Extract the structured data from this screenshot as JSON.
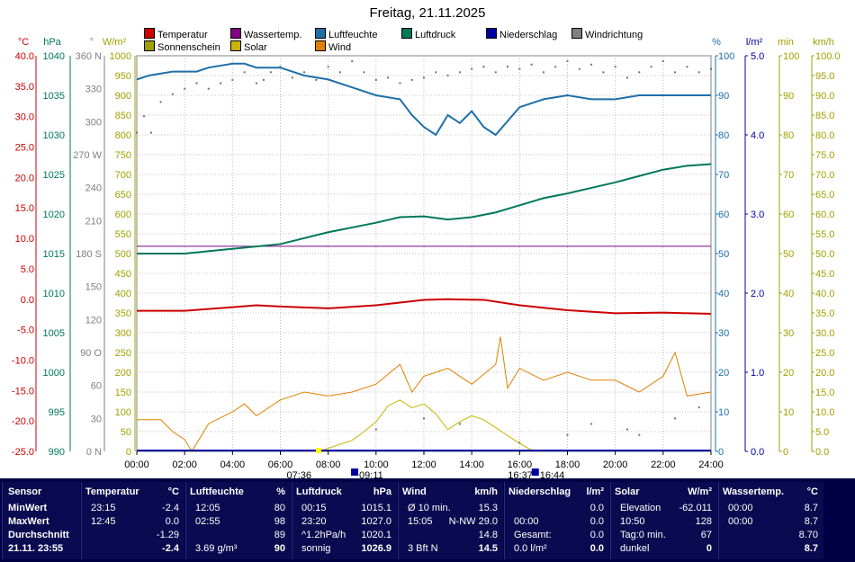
{
  "title": "Freitag, 21.11.2025",
  "legend": [
    {
      "label": "Temperatur",
      "color": "#cc0000"
    },
    {
      "label": "Wassertemp.",
      "color": "#800080"
    },
    {
      "label": "Luftfeuchte",
      "color": "#1e6fa8"
    },
    {
      "label": "Luftdruck",
      "color": "#00785a"
    },
    {
      "label": "Niederschlag",
      "color": "#0000a0"
    },
    {
      "label": "Windrichtung",
      "color": "#808080"
    },
    {
      "label": "Sonnenschein",
      "color": "#a0a000"
    },
    {
      "label": "Solar",
      "color": "#c8b400"
    },
    {
      "label": "Wind",
      "color": "#e08000"
    }
  ],
  "axis_units": {
    "temp": "°C",
    "pressure": "hPa",
    "direction": "°",
    "solar": "W/m²",
    "humidity": "%",
    "rain": "l/m²",
    "sunmin": "min",
    "wind": "km/h"
  },
  "sun_events": {
    "rise": "07:36",
    "set": "16:37",
    "sun_start": "09:11",
    "sun_end": "16:44"
  },
  "chart_data": {
    "type": "line",
    "x": [
      "00:00",
      "02:00",
      "04:00",
      "06:00",
      "08:00",
      "10:00",
      "12:00",
      "14:00",
      "16:00",
      "18:00",
      "20:00",
      "22:00",
      "24:00"
    ],
    "axes": {
      "temp": {
        "label": "°C",
        "range": [
          -25,
          40
        ],
        "ticks": [
          "40.0",
          "35.0",
          "30.0",
          "25.0",
          "20.0",
          "15.0",
          "10.0",
          "5.0",
          "0.0",
          "-5.0",
          "-10.0",
          "-15.0",
          "-20.0",
          "-25.0"
        ],
        "color": "#cc0000"
      },
      "pressure": {
        "label": "hPa",
        "range": [
          990,
          1040
        ],
        "ticks": [
          "1040",
          "1035",
          "1030",
          "1025",
          "1020",
          "1015",
          "1010",
          "1005",
          "1000",
          "995",
          "990"
        ],
        "color": "#00785a"
      },
      "direction": {
        "label": "°",
        "range": [
          0,
          360
        ],
        "ticks": [
          "360 N",
          "330",
          "300",
          "270 W",
          "240",
          "210",
          "180 S",
          "150",
          "120",
          "90 O",
          "60",
          "30",
          "0 N"
        ],
        "color": "#808080"
      },
      "solar": {
        "label": "W/m²",
        "range": [
          0,
          1000
        ],
        "ticks": [
          "1000",
          "950",
          "900",
          "850",
          "800",
          "750",
          "700",
          "650",
          "600",
          "550",
          "500",
          "450",
          "400",
          "350",
          "300",
          "250",
          "200",
          "150",
          "100",
          "50",
          "0"
        ],
        "color": "#a0a000"
      },
      "humidity": {
        "label": "%",
        "range": [
          0,
          100
        ],
        "ticks": [
          "100",
          "90",
          "80",
          "70",
          "60",
          "50",
          "40",
          "30",
          "20",
          "10",
          "0"
        ],
        "color": "#1e6fa8"
      },
      "rain": {
        "label": "l/m²",
        "range": [
          0,
          5
        ],
        "ticks": [
          "5.0",
          "4.0",
          "3.0",
          "2.0",
          "1.0",
          "0.0"
        ],
        "color": "#0000a0"
      },
      "sunmin": {
        "label": "min",
        "range": [
          0,
          100
        ],
        "ticks": [
          "100",
          "90",
          "80",
          "70",
          "60",
          "50",
          "40",
          "30",
          "20",
          "10",
          "0"
        ],
        "color": "#a0a000"
      },
      "wind": {
        "label": "km/h",
        "range": [
          0,
          100
        ],
        "ticks": [
          "100.0",
          "95.0",
          "90.0",
          "85.0",
          "80.0",
          "75.0",
          "70.0",
          "65.0",
          "60.0",
          "55.0",
          "50.0",
          "45.0",
          "40.0",
          "35.0",
          "30.0",
          "25.0",
          "20.0",
          "15.0",
          "10.0",
          "5.0",
          "0.0"
        ],
        "color": "#a0a000"
      }
    },
    "series": [
      {
        "name": "Temperatur",
        "axis": "temp",
        "color": "#cc0000",
        "x": [
          0,
          2,
          4,
          5,
          6,
          8,
          10,
          12,
          13,
          14.5,
          16,
          18,
          20,
          22,
          24
        ],
        "y": [
          -1.9,
          -1.9,
          -1.3,
          -1.0,
          -1.2,
          -1.5,
          -1.0,
          -0.1,
          0.0,
          -0.1,
          -1.0,
          -1.8,
          -2.3,
          -2.2,
          -2.4
        ]
      },
      {
        "name": "Wassertemp.",
        "axis": "temp",
        "color": "#800080",
        "x": [
          0,
          24
        ],
        "y": [
          8.7,
          8.7
        ]
      },
      {
        "name": "Luftfeuchte",
        "axis": "humidity",
        "color": "#1e6fa8",
        "x": [
          0,
          0.5,
          1.5,
          2.5,
          3,
          4,
          4.5,
          5,
          6,
          7,
          8,
          9,
          10,
          11,
          11.5,
          12,
          12.5,
          13,
          13.5,
          14,
          14.5,
          15,
          16,
          17,
          18,
          19,
          20,
          21,
          22,
          24
        ],
        "y": [
          94,
          95,
          96,
          96,
          97,
          98,
          98,
          97,
          97,
          95,
          94,
          92,
          90,
          89,
          85,
          82,
          80,
          85,
          83,
          86,
          82,
          80,
          87,
          89,
          90,
          89,
          89,
          90,
          90,
          90
        ]
      },
      {
        "name": "Luftdruck",
        "axis": "pressure",
        "color": "#00785a",
        "x": [
          0,
          2,
          4,
          6,
          8,
          10,
          11,
          12,
          13,
          14,
          15,
          16,
          17,
          18,
          19,
          20,
          21,
          22,
          23,
          24
        ],
        "y": [
          1015.0,
          1015.0,
          1015.6,
          1016.2,
          1017.7,
          1018.9,
          1019.6,
          1019.7,
          1019.3,
          1019.6,
          1020.2,
          1021.1,
          1022.0,
          1022.6,
          1023.3,
          1024.0,
          1024.8,
          1025.6,
          1026.1,
          1026.3
        ]
      },
      {
        "name": "Solar",
        "axis": "solar",
        "color": "#c8b400",
        "x": [
          7.6,
          8,
          9,
          9.5,
          10,
          10.5,
          11,
          11.5,
          12,
          12.5,
          13,
          13.5,
          14,
          14.5,
          15,
          15.5,
          16,
          16.6
        ],
        "y": [
          0,
          8,
          28,
          50,
          75,
          115,
          130,
          110,
          120,
          95,
          55,
          75,
          90,
          80,
          60,
          40,
          20,
          0
        ]
      },
      {
        "name": "Wind",
        "axis": "wind",
        "color": "#e08000",
        "x": [
          0,
          1,
          1.5,
          2,
          2.3,
          3,
          4,
          4.5,
          5,
          6,
          7,
          8,
          9,
          10,
          11,
          11.5,
          12,
          13,
          14,
          15,
          15.2,
          15.5,
          16,
          17,
          18,
          19,
          20,
          21,
          22,
          22.5,
          23,
          24
        ],
        "y": [
          8,
          8,
          5,
          3,
          0,
          7,
          10,
          12,
          9,
          13,
          15,
          14,
          15,
          17,
          22,
          15,
          19,
          21,
          17,
          22,
          29,
          16,
          21,
          18,
          20,
          18,
          18,
          15,
          19,
          25,
          14,
          15
        ]
      }
    ],
    "winddirection_points": [
      [
        0,
        290
      ],
      [
        0.3,
        305
      ],
      [
        0.6,
        290
      ],
      [
        1,
        318
      ],
      [
        1.5,
        325
      ],
      [
        2,
        330
      ],
      [
        2.5,
        335
      ],
      [
        3,
        330
      ],
      [
        3.5,
        335
      ],
      [
        4,
        338
      ],
      [
        4.5,
        345
      ],
      [
        5,
        335
      ],
      [
        5.3,
        338
      ],
      [
        5.6,
        345
      ],
      [
        6,
        350
      ],
      [
        6.5,
        340
      ],
      [
        7,
        345
      ],
      [
        7.5,
        338
      ],
      [
        8,
        350
      ],
      [
        8.5,
        345
      ],
      [
        9,
        355
      ],
      [
        9.5,
        345
      ],
      [
        10,
        338
      ],
      [
        10.5,
        340
      ],
      [
        11,
        335
      ],
      [
        11.5,
        338
      ],
      [
        12,
        340
      ],
      [
        12.5,
        345
      ],
      [
        13,
        342
      ],
      [
        13.5,
        345
      ],
      [
        14,
        348
      ],
      [
        14.5,
        350
      ],
      [
        15,
        345
      ],
      [
        15.5,
        350
      ],
      [
        16,
        348
      ],
      [
        16.5,
        352
      ],
      [
        17,
        345
      ],
      [
        17.5,
        350
      ],
      [
        18,
        355
      ],
      [
        18.5,
        348
      ],
      [
        19,
        352
      ],
      [
        19.5,
        345
      ],
      [
        20,
        350
      ],
      [
        20.5,
        340
      ],
      [
        21,
        345
      ],
      [
        21.5,
        350
      ],
      [
        22,
        355
      ],
      [
        22.5,
        345
      ],
      [
        23,
        350
      ],
      [
        23.5,
        345
      ],
      [
        24,
        348
      ],
      [
        10,
        20
      ],
      [
        12,
        30
      ],
      [
        13.5,
        25
      ],
      [
        16,
        8
      ],
      [
        18,
        15
      ],
      [
        19,
        25
      ],
      [
        20.5,
        20
      ],
      [
        21,
        15
      ],
      [
        22.5,
        30
      ],
      [
        23.5,
        40
      ]
    ]
  },
  "panel": {
    "sensor": {
      "header": "Sensor",
      "rows": [
        "MinWert",
        "MaxWert",
        "Durchschnitt",
        "21.11. 23:55"
      ]
    },
    "temperatur": {
      "header": "Temperatur",
      "unit": "°C",
      "rows": [
        [
          "23:15",
          "-2.4"
        ],
        [
          "12:45",
          "0.0"
        ],
        [
          "",
          "-1.29"
        ],
        [
          "",
          "-2.4"
        ]
      ]
    },
    "luftfeuchte": {
      "header": "Luftfeuchte",
      "unit": "%",
      "rows": [
        [
          "12:05",
          "80"
        ],
        [
          "02:55",
          "98"
        ],
        [
          "",
          "89"
        ],
        [
          "3.69 g/m³",
          "90"
        ]
      ]
    },
    "luftdruck": {
      "header": "Luftdruck",
      "unit": "hPa",
      "rows": [
        [
          "00:15",
          "1015.1"
        ],
        [
          "23:20",
          "1027.0"
        ],
        [
          "^1.2hPa/h",
          "1020.1"
        ],
        [
          "sonnig",
          "1026.9"
        ]
      ]
    },
    "wind": {
      "header": "Wind",
      "unit": "km/h",
      "rows": [
        [
          "Ø 10 min.",
          "15.3"
        ],
        [
          "15:05",
          "N-NW 29.0"
        ],
        [
          "",
          "14.8"
        ],
        [
          "3 Bft N",
          "14.5"
        ]
      ]
    },
    "niederschlag": {
      "header": "Niederschlag",
      "unit": "l/m²",
      "rows": [
        [
          "",
          "0.0"
        ],
        [
          "00:00",
          "0.0"
        ],
        [
          "Gesamt:",
          "0.0"
        ],
        [
          "0.0 l/m²",
          "0.0"
        ]
      ]
    },
    "solar": {
      "header": "Solar",
      "unit": "W/m²",
      "rows": [
        [
          "Elevation",
          "-62.011"
        ],
        [
          "10:50",
          "128"
        ],
        [
          "Tag:0 min.",
          "67"
        ],
        [
          "dunkel",
          "0"
        ]
      ]
    },
    "wassertemp": {
      "header": "Wassertemp.",
      "unit": "°C",
      "rows": [
        [
          "00:00",
          "8.7"
        ],
        [
          "00:00",
          "8.7"
        ],
        [
          "",
          "8.70"
        ],
        [
          "",
          "8.7"
        ]
      ]
    }
  }
}
